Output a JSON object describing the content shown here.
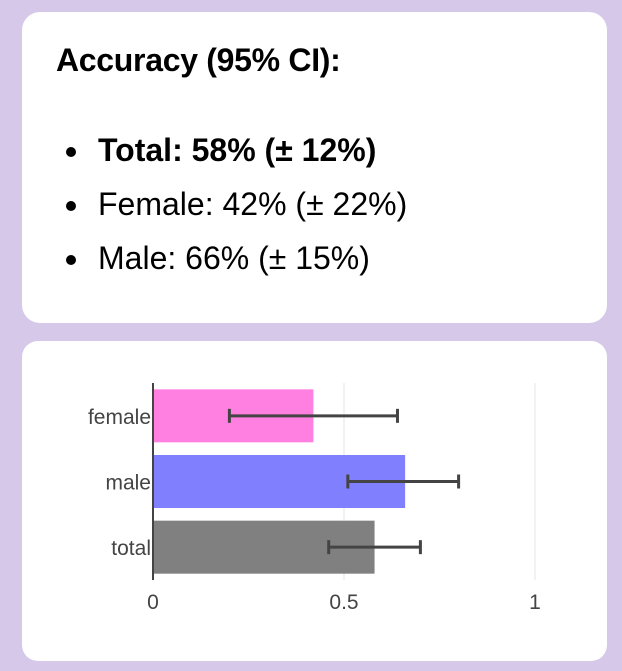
{
  "summary": {
    "title": "Accuracy (95% CI):",
    "items": [
      {
        "label": "Total: 58% (± 12%)",
        "bold": true
      },
      {
        "label": "Female: 42% (± 22%)",
        "bold": false
      },
      {
        "label": "Male: 66% (± 15%)",
        "bold": false
      }
    ]
  },
  "chart_data": {
    "type": "bar",
    "orientation": "horizontal",
    "categories": [
      "female",
      "male",
      "total"
    ],
    "values": [
      0.42,
      0.66,
      0.58
    ],
    "error_low": [
      0.2,
      0.51,
      0.46
    ],
    "error_high": [
      0.64,
      0.8,
      0.7
    ],
    "colors": [
      "#ff80e0",
      "#8080ff",
      "#808080"
    ],
    "xlim": [
      0,
      1.05
    ],
    "xticks": [
      0,
      0.5,
      1
    ],
    "xtick_labels": [
      "0",
      "0.5",
      "1"
    ],
    "grid": true,
    "title": "",
    "xlabel": "",
    "ylabel": ""
  }
}
